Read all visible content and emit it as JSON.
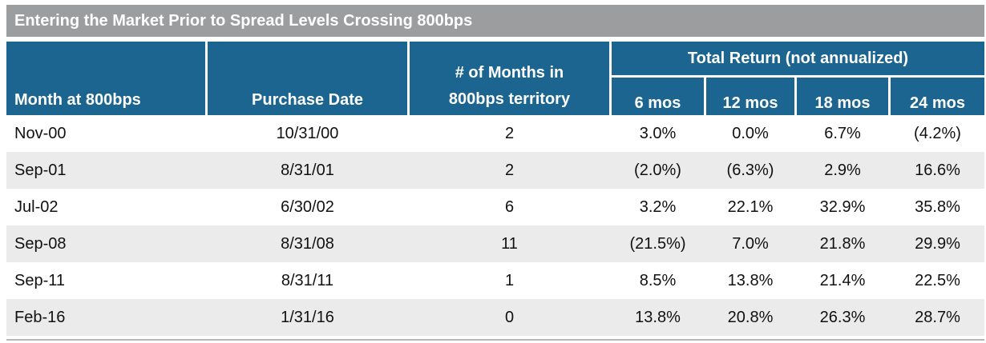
{
  "title": "Entering the Market Prior to Spread Levels Crossing 800bps",
  "headers": {
    "month": "Month at 800bps",
    "purchase": "Purchase Date",
    "months_line1": "# of Months in",
    "months_line2": "800bps territory",
    "total_return": "Total Return (not annualized)",
    "m6": "6 mos",
    "m12": "12 mos",
    "m18": "18 mos",
    "m24": "24 mos"
  },
  "rows": [
    {
      "month": "Nov-00",
      "purchase": "10/31/00",
      "months": "2",
      "m6": "3.0%",
      "m12": "0.0%",
      "m18": "6.7%",
      "m24": "(4.2%)"
    },
    {
      "month": "Sep-01",
      "purchase": "8/31/01",
      "months": "2",
      "m6": "(2.0%)",
      "m12": "(6.3%)",
      "m18": "2.9%",
      "m24": "16.6%"
    },
    {
      "month": "Jul-02",
      "purchase": "6/30/02",
      "months": "6",
      "m6": "3.2%",
      "m12": "22.1%",
      "m18": "32.9%",
      "m24": "35.8%"
    },
    {
      "month": "Sep-08",
      "purchase": "8/31/08",
      "months": "11",
      "m6": "(21.5%)",
      "m12": "7.0%",
      "m18": "21.8%",
      "m24": "29.9%"
    },
    {
      "month": "Sep-11",
      "purchase": "8/31/11",
      "months": "1",
      "m6": "8.5%",
      "m12": "13.8%",
      "m18": "21.4%",
      "m24": "22.5%"
    },
    {
      "month": "Feb-16",
      "purchase": "1/31/16",
      "months": "0",
      "m6": "13.8%",
      "m12": "20.8%",
      "m18": "26.3%",
      "m24": "28.7%"
    }
  ]
}
